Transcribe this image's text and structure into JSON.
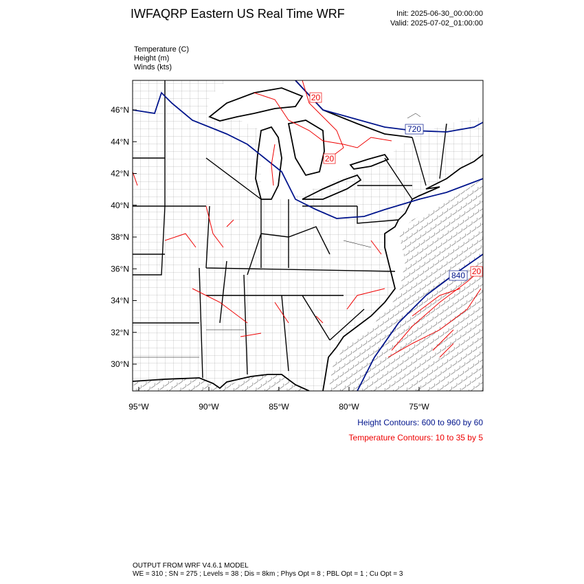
{
  "header": {
    "title": "IWFAQRP Eastern US Real Time WRF",
    "init": "Init: 2025-06-30_00:00:00",
    "valid": "Valid: 2025-07-02_01:00:00"
  },
  "fields": [
    "Temperature   (C)",
    "Height   (m)",
    "Winds   (kts)"
  ],
  "map": {
    "lat_labels": [
      "46°N",
      "44°N",
      "42°N",
      "40°N",
      "38°N",
      "36°N",
      "34°N",
      "32°N",
      "30°N"
    ],
    "lon_labels": [
      "95°W",
      "90°W",
      "85°W",
      "80°W",
      "75°W"
    ],
    "contour_labels": [
      "20",
      "20",
      "720",
      "840",
      "20"
    ]
  },
  "notes": [
    "Height Contours: 600 to 960 by 60",
    "Temperature Contours: 10 to 35 by 5"
  ],
  "footer": [
    "OUTPUT FROM WRF V4.6.1 MODEL",
    "WE = 310 ; SN = 275 ; Levels = 38 ; Dis = 8km ; Phys Opt = 8 ; PBL Opt = 1 ; Cu Opt = 3"
  ]
}
